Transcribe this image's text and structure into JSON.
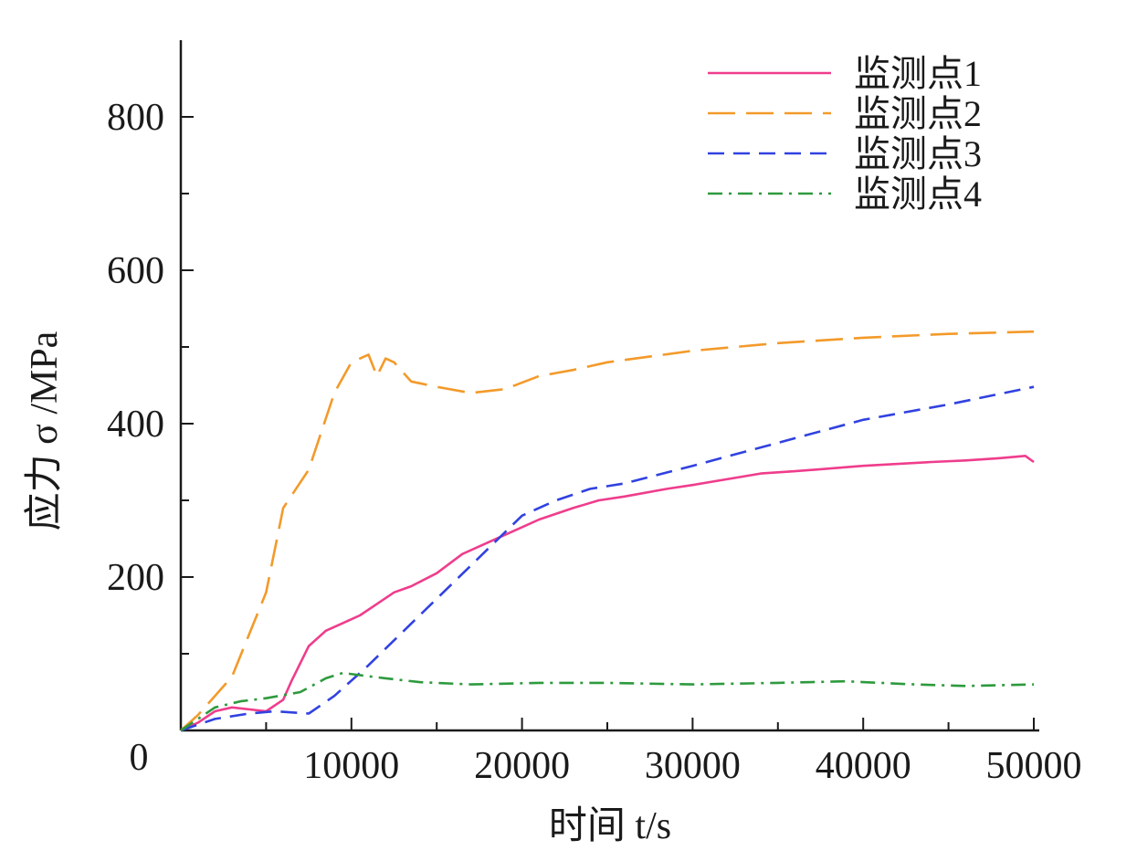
{
  "chart_data": {
    "type": "line",
    "xlabel": "时间 t/s",
    "ylabel": "应力 σ /MPa",
    "xlim": [
      0,
      50000
    ],
    "ylim": [
      0,
      900
    ],
    "x_ticks": [
      "10000",
      "20000",
      "30000",
      "40000",
      "50000"
    ],
    "x_origin_label": "0",
    "y_ticks": [
      "200",
      "400",
      "600",
      "800"
    ],
    "grid": false,
    "legend_position": "top-right",
    "series": [
      {
        "name": "监测点1",
        "color": "#ef3d8c",
        "dash": "solid",
        "x": [
          0,
          1000,
          2000,
          3000,
          5000,
          6000,
          6500,
          7500,
          8500,
          9500,
          10500,
          11500,
          12500,
          13500,
          15000,
          16500,
          18000,
          20000,
          21000,
          23000,
          24500,
          26000,
          28500,
          30000,
          34000,
          36000,
          40000,
          44000,
          46000,
          48000,
          49500,
          50000
        ],
        "y": [
          0,
          10,
          25,
          30,
          25,
          40,
          65,
          110,
          130,
          140,
          150,
          165,
          180,
          188,
          205,
          230,
          245,
          265,
          275,
          290,
          300,
          305,
          315,
          320,
          335,
          338,
          345,
          350,
          352,
          355,
          358,
          350
        ]
      },
      {
        "name": "监测点2",
        "color": "#f39a2a",
        "dash": "long-dash",
        "x": [
          0,
          1000,
          2000,
          3000,
          5000,
          6000,
          7500,
          9000,
          10000,
          11000,
          11500,
          12000,
          12500,
          13500,
          15000,
          17000,
          19000,
          21000,
          23000,
          25000,
          30000,
          35000,
          40000,
          45000,
          50000
        ],
        "y": [
          0,
          20,
          45,
          70,
          180,
          290,
          340,
          440,
          480,
          490,
          462,
          485,
          480,
          455,
          448,
          440,
          445,
          462,
          470,
          480,
          495,
          505,
          512,
          517,
          520
        ]
      },
      {
        "name": "监测点3",
        "color": "#3142e0",
        "dash": "dash",
        "x": [
          0,
          2000,
          4000,
          5500,
          7500,
          9000,
          11000,
          14000,
          17000,
          20000,
          22000,
          24000,
          26000,
          30000,
          35000,
          40000,
          45000,
          50000
        ],
        "y": [
          0,
          15,
          22,
          25,
          22,
          45,
          85,
          150,
          215,
          280,
          300,
          315,
          322,
          345,
          375,
          405,
          425,
          448
        ]
      },
      {
        "name": "监测点4",
        "color": "#2e9a3e",
        "dash": "dash-dot",
        "x": [
          0,
          2000,
          3500,
          5000,
          7000,
          8500,
          9500,
          10500,
          12000,
          14000,
          17000,
          21000,
          25000,
          30000,
          35000,
          39000,
          43000,
          46000,
          50000
        ],
        "y": [
          0,
          30,
          38,
          42,
          50,
          68,
          75,
          72,
          68,
          63,
          60,
          62,
          62,
          60,
          62,
          64,
          60,
          58,
          60
        ]
      }
    ]
  }
}
